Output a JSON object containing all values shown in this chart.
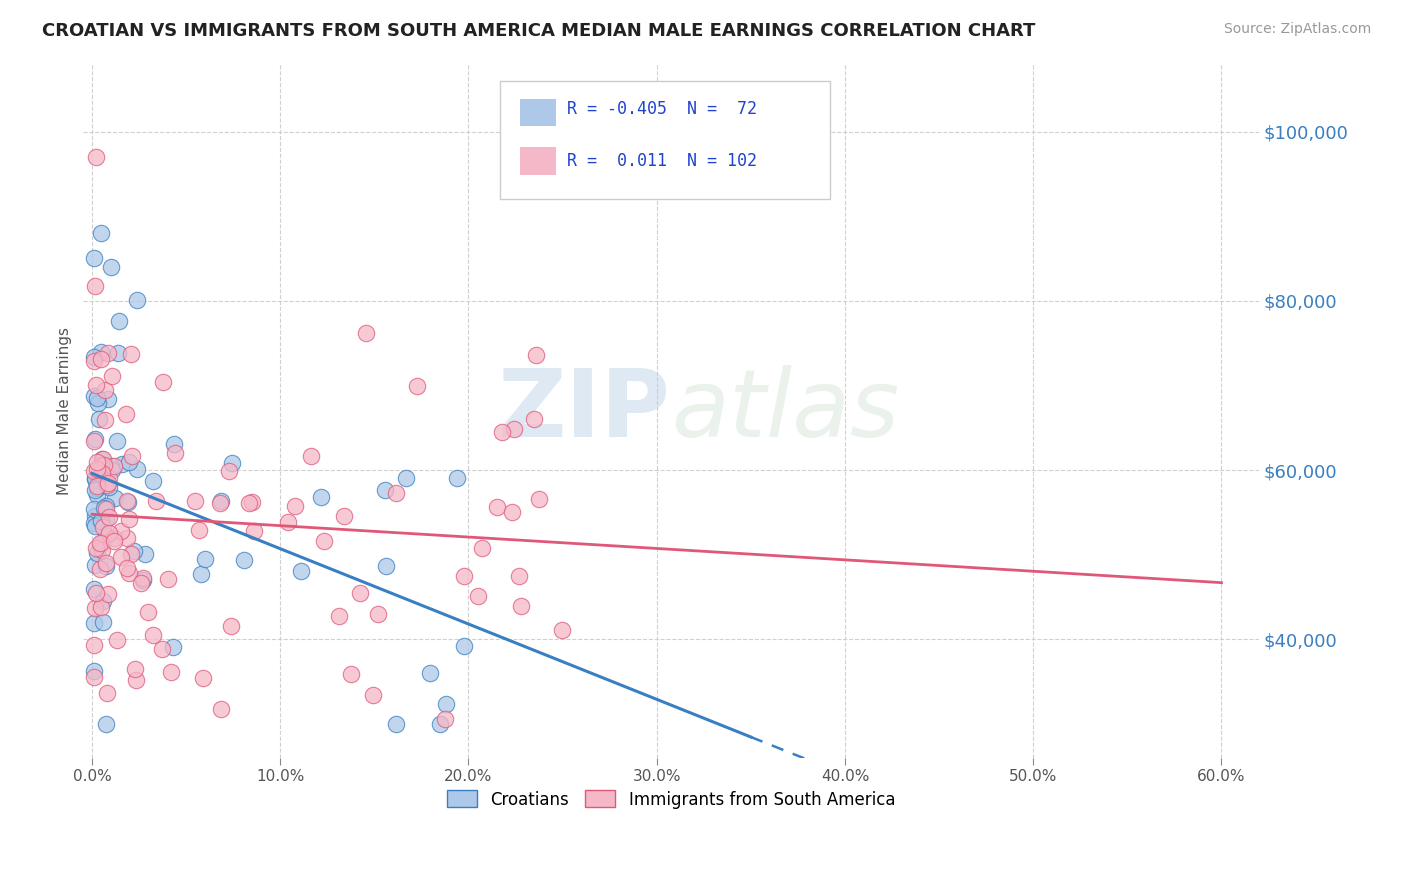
{
  "title": "CROATIAN VS IMMIGRANTS FROM SOUTH AMERICA MEDIAN MALE EARNINGS CORRELATION CHART",
  "source": "Source: ZipAtlas.com",
  "ylabel_label": "Median Male Earnings",
  "xlim": [
    -0.005,
    0.62
  ],
  "ylim": [
    26000,
    108000
  ],
  "blue_R": -0.405,
  "blue_N": 72,
  "pink_R": 0.011,
  "pink_N": 102,
  "blue_color": "#adc8e8",
  "pink_color": "#f5b8c8",
  "blue_line_color": "#3a7fc1",
  "pink_line_color": "#e05878",
  "watermark_zip": "ZIP",
  "watermark_atlas": "atlas",
  "background_color": "#ffffff",
  "grid_color": "#d0d0d0",
  "legend_label_blue": "Croatians",
  "legend_label_pink": "Immigrants from South America",
  "ytick_vals": [
    40000,
    60000,
    80000,
    100000
  ],
  "ytick_labels": [
    "$40,000",
    "$60,000",
    "$80,000",
    "$100,000"
  ],
  "xtick_vals": [
    0.0,
    0.1,
    0.2,
    0.3,
    0.4,
    0.5,
    0.6
  ],
  "xtick_labels": [
    "0.0%",
    "10.0%",
    "20.0%",
    "30.0%",
    "40.0%",
    "50.0%",
    "60.0%"
  ]
}
